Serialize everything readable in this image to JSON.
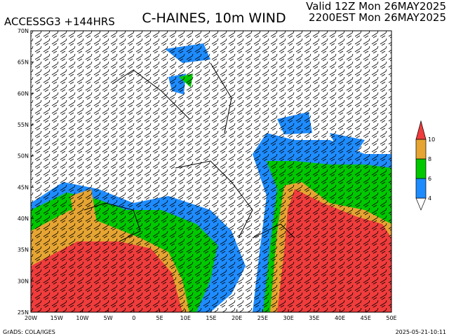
{
  "header": {
    "model": "ACCESSG3 +144HRS",
    "title": "C-HAINES, 10m WIND",
    "valid": "Valid 12Z Mon 26MAY2025",
    "local": "2200EST Mon 26MAY2025"
  },
  "map": {
    "lat_labels": [
      "70N",
      "65N",
      "60N",
      "55N",
      "50N",
      "45N",
      "40N",
      "35N",
      "30N",
      "25N"
    ],
    "lon_labels": [
      "20W",
      "15W",
      "10W",
      "5W",
      "0",
      "5E",
      "10E",
      "15E",
      "20E",
      "25E",
      "30E",
      "35E",
      "40E",
      "45E",
      "50E"
    ]
  },
  "colorbar": {
    "levels": [
      "4",
      "6",
      "8",
      "10"
    ],
    "colors": [
      "#1e8cff",
      "#00c800",
      "#e6a532",
      "#f03c3c"
    ]
  },
  "footer": {
    "credit": "GrADS: COLA/IGES",
    "timestamp": "2025-05-21-10:11"
  }
}
